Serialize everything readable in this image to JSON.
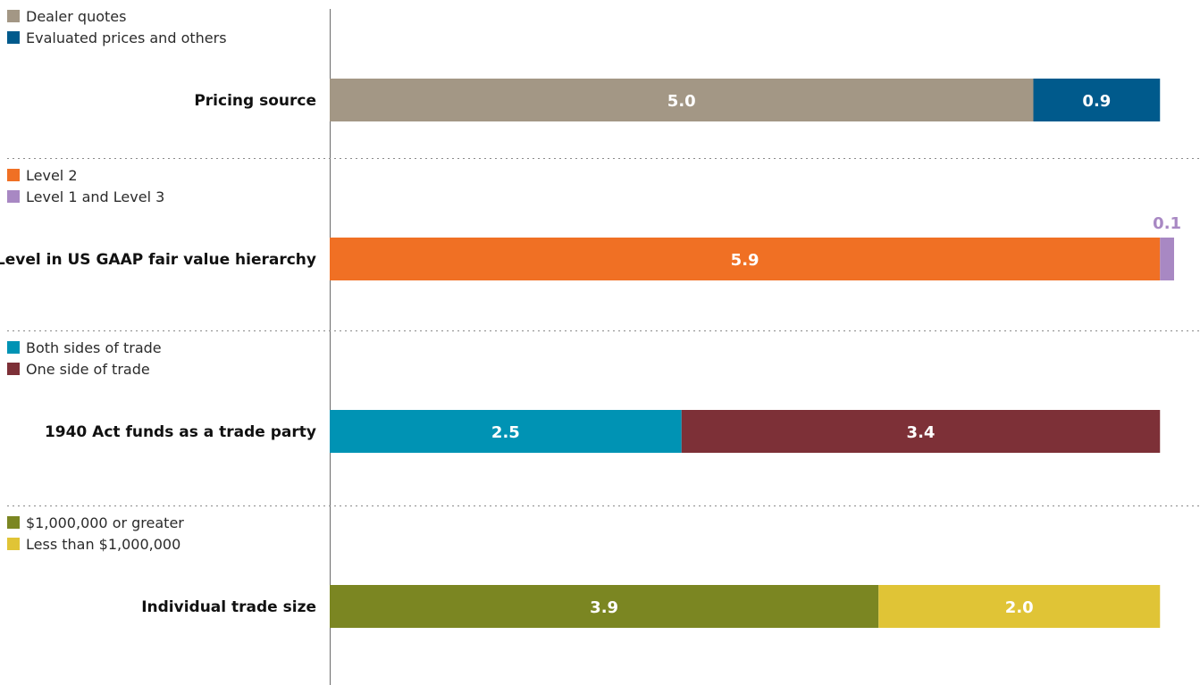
{
  "chart_data": {
    "type": "bar",
    "orientation": "horizontal",
    "stacked": true,
    "grid": false,
    "xlim": [
      0,
      6.0
    ],
    "legend_placement": "above each bar, left",
    "groups": [
      {
        "category": "Pricing source",
        "series": [
          {
            "name": "Dealer quotes",
            "value": 5.0,
            "label": "5.0",
            "color": "#A39785"
          },
          {
            "name": "Evaluated prices and others",
            "value": 0.9,
            "label": "0.9",
            "color": "#005A8C"
          }
        ]
      },
      {
        "category": "Level in US GAAP fair value hierarchy",
        "series": [
          {
            "name": "Level 2",
            "value": 5.9,
            "label": "5.9",
            "color": "#F07024"
          },
          {
            "name": "Level 1 and Level 3",
            "value": 0.1,
            "label": "0.1",
            "color": "#A888C3",
            "label_outside": true
          }
        ]
      },
      {
        "category": "1940 Act funds as a trade party",
        "series": [
          {
            "name": "Both sides of trade",
            "value": 2.5,
            "label": "2.5",
            "color": "#0093B4"
          },
          {
            "name": "One side of trade",
            "value": 3.4,
            "label": "3.4",
            "color": "#7D3037"
          }
        ]
      },
      {
        "category": "Individual trade size",
        "series": [
          {
            "name": "$1,000,000 or greater",
            "value": 3.9,
            "label": "3.9",
            "color": "#7B8622"
          },
          {
            "name": "Less than $1,000,000",
            "value": 2.0,
            "label": "2.0",
            "color": "#E0C436"
          }
        ]
      }
    ]
  }
}
